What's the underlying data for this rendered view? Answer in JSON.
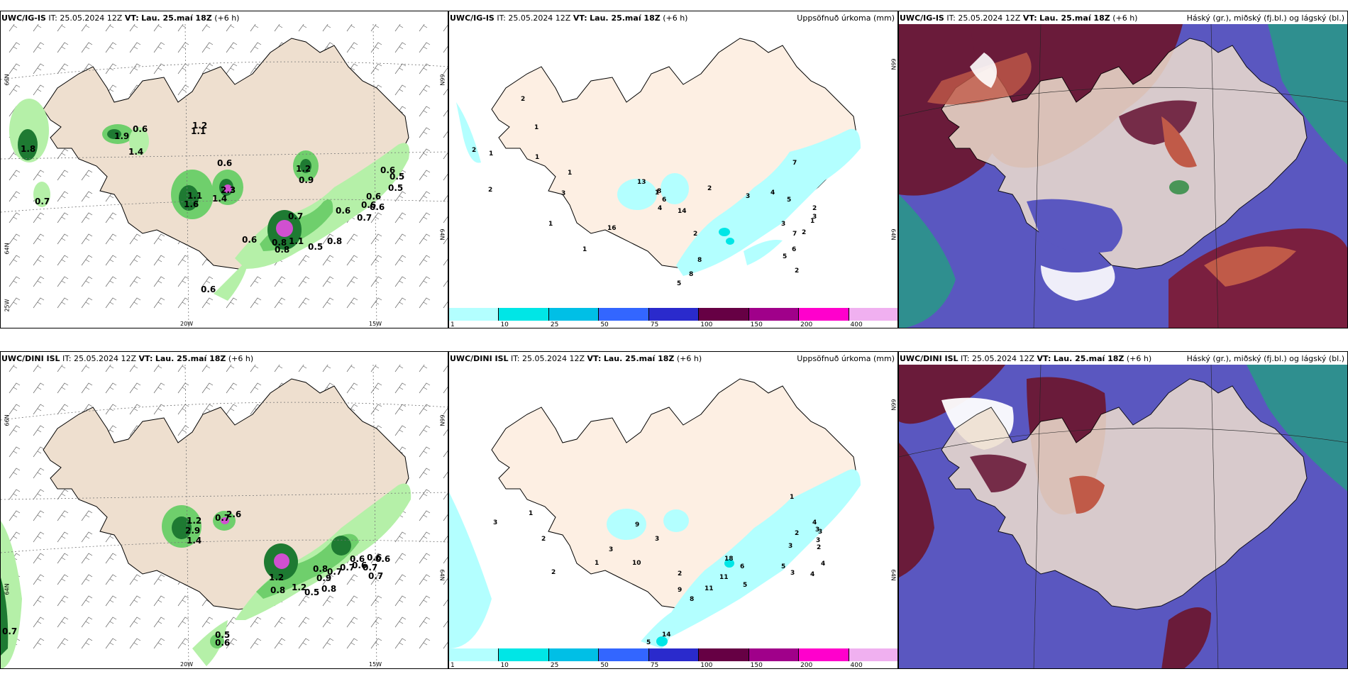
{
  "panels": [
    {
      "row": "top",
      "model": "UWC/IG-IS",
      "it_label": "IT:",
      "it_value": "25.05.2024 12Z",
      "vt_label": "VT:",
      "vt_value": "Lau. 25.maí 18Z",
      "lead": "(+6 h)",
      "wind_labels": [
        "1.8",
        "0.7",
        "1.9",
        "0.6",
        "1.4",
        "1.2",
        "1.1",
        "0.6",
        "1.1",
        "1.6",
        "2.3",
        "1.4",
        "1.2",
        "0.9",
        "0.6",
        "0.5",
        "0.5",
        "0.6",
        "0.6",
        "0.6",
        "0.8",
        "1.1",
        "0.8",
        "0.8",
        "0.5",
        "0.6",
        "0.7",
        "0.6",
        "0.6",
        "0.7"
      ],
      "lat_labels": [
        "66N",
        "64N"
      ],
      "lon_labels": [
        "20W",
        "15W",
        "25W"
      ],
      "precip_title": "Uppsöfnuð úrkoma (mm)",
      "precip_labels": [
        "2",
        "2",
        "1",
        "1",
        "2",
        "1",
        "1",
        "1",
        "2",
        "3",
        "4",
        "5",
        "1",
        "2",
        "3",
        "2",
        "7",
        "8",
        "6",
        "4",
        "2",
        "14",
        "13",
        "16",
        "8",
        "8",
        "5",
        "1",
        "1",
        "3",
        "7",
        "6",
        "5",
        "3",
        "2"
      ],
      "cloud_title": "Háský (gr.), miðský (fj.bl.) og lágský (bl.)"
    },
    {
      "row": "bottom",
      "model": "UWC/DINI ISL",
      "it_label": "IT:",
      "it_value": "25.05.2024 12Z",
      "vt_label": "VT:",
      "vt_value": "Lau. 25.maí 18Z",
      "lead": "(+6 h)",
      "wind_labels": [
        "1.2",
        "2.9",
        "1.4",
        "0.7",
        "2.6",
        "1.2",
        "0.8",
        "1.2",
        "0.8",
        "0.7",
        "0.9",
        "0.8",
        "0.5",
        "0.7",
        "0.6",
        "0.6",
        "0.7",
        "0.6",
        "0.6",
        "0.7",
        "0.5",
        "0.6",
        "0.7"
      ],
      "lat_labels": [
        "66N",
        "64N"
      ],
      "lon_labels": [
        "20W",
        "15W"
      ],
      "precip_title": "Uppsöfnuð úrkoma (mm)",
      "precip_labels": [
        "3",
        "1",
        "2",
        "10",
        "9",
        "3",
        "2",
        "1",
        "3",
        "2",
        "9",
        "11",
        "8",
        "18",
        "11",
        "6",
        "5",
        "14",
        "5",
        "1",
        "3",
        "2",
        "4",
        "3",
        "3",
        "2",
        "3",
        "4",
        "5",
        "3",
        "4"
      ],
      "cloud_title": "Háský (gr.), miðský (fj.bl.) og lágský (bl.)"
    }
  ],
  "colorbar": {
    "ticks": [
      "1",
      "10",
      "25",
      "50",
      "75",
      "100",
      "150",
      "200",
      "400"
    ],
    "colors": [
      "#b3ffff",
      "#00e6e6",
      "#00bfe6",
      "#3366ff",
      "#2a2acc",
      "#660044",
      "#a0008a",
      "#ff00cc",
      "#f0b0f0"
    ]
  },
  "colors": {
    "land": "#eedfcf",
    "land_precip": "#fdefe3",
    "green_light": "#b5f0a8",
    "green_mid": "#6fcf6c",
    "green_dark": "#1e7a32",
    "magenta": "#d050d0",
    "cyan_light": "#b3ffff",
    "cloud_high": "#6a1b3a",
    "cloud_mid": "#c05a48",
    "cloud_low": "#5a57c0",
    "cloud_teal": "#2f8f8f"
  }
}
